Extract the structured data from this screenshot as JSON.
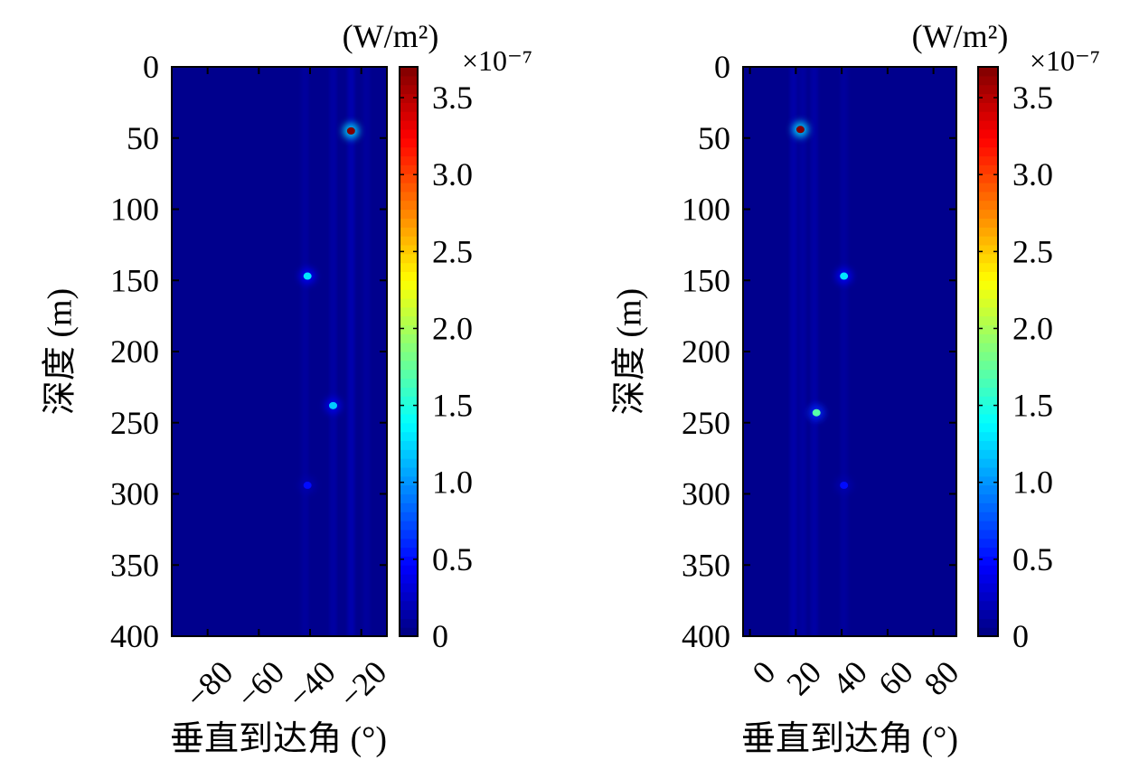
{
  "colormap": "jet",
  "colors": {
    "background": "#00008f",
    "stripe": "#0a2ac8"
  },
  "chart_data": [
    {
      "type": "heatmap",
      "xlabel": "垂直到达角 (°)",
      "ylabel": "深度 (m)",
      "xlim": [
        -94,
        -10
      ],
      "ylim": [
        0,
        400
      ],
      "y_inverted": true,
      "xticks": [
        -80,
        -60,
        -40,
        -20
      ],
      "xtick_labels": [
        "−80",
        "−60",
        "−40",
        "−20"
      ],
      "yticks": [
        0,
        50,
        100,
        150,
        200,
        250,
        300,
        350,
        400
      ],
      "ytick_labels": [
        "0",
        "50",
        "100",
        "150",
        "200",
        "250",
        "300",
        "350",
        "400"
      ],
      "colorbar": {
        "unit": "(W/m²)",
        "multiplier": "×10⁻⁷",
        "range": [
          0,
          3.7
        ],
        "ticks": [
          0,
          0.5,
          1.0,
          1.5,
          2.0,
          2.5,
          3.0,
          3.5
        ],
        "tick_labels": [
          "0",
          "0.5",
          "1.0",
          "1.5",
          "2.0",
          "2.5",
          "3.0",
          "3.5"
        ]
      },
      "background_value": 0.05,
      "stripes": [
        {
          "x": -42,
          "value": 0.12
        },
        {
          "x": -31,
          "value": 0.15
        },
        {
          "x": -24,
          "value": 0.2
        },
        {
          "x": -18,
          "value": 0.12
        }
      ],
      "hotspots": [
        {
          "angle": -24,
          "depth": 45,
          "value": 3.7
        },
        {
          "angle": -41,
          "depth": 147,
          "value": 1.3
        },
        {
          "angle": -31,
          "depth": 238,
          "value": 1.2
        },
        {
          "angle": -41,
          "depth": 294,
          "value": 0.5
        }
      ]
    },
    {
      "type": "heatmap",
      "xlabel": "垂直到达角 (°)",
      "ylabel": "深度 (m)",
      "xlim": [
        -3,
        90
      ],
      "ylim": [
        0,
        400
      ],
      "y_inverted": true,
      "xticks": [
        0,
        20,
        40,
        60,
        80
      ],
      "xtick_labels": [
        "0",
        "20",
        "40",
        "60",
        "80"
      ],
      "yticks": [
        0,
        50,
        100,
        150,
        200,
        250,
        300,
        350,
        400
      ],
      "ytick_labels": [
        "0",
        "50",
        "100",
        "150",
        "200",
        "250",
        "300",
        "350",
        "400"
      ],
      "colorbar": {
        "unit": "(W/m²)",
        "multiplier": "×10⁻⁷",
        "range": [
          0,
          3.7
        ],
        "ticks": [
          0,
          0.5,
          1.0,
          1.5,
          2.0,
          2.5,
          3.0,
          3.5
        ],
        "tick_labels": [
          "0",
          "0.5",
          "1.0",
          "1.5",
          "2.0",
          "2.5",
          "3.0",
          "3.5"
        ]
      },
      "background_value": 0.05,
      "stripes": [
        {
          "x": 19,
          "value": 0.18
        },
        {
          "x": 23,
          "value": 0.14
        },
        {
          "x": 28,
          "value": 0.16
        },
        {
          "x": 41,
          "value": 0.12
        }
      ],
      "hotspots": [
        {
          "angle": 22,
          "depth": 44,
          "value": 3.7
        },
        {
          "angle": 41,
          "depth": 147,
          "value": 1.3
        },
        {
          "angle": 29,
          "depth": 243,
          "value": 1.7
        },
        {
          "angle": 41,
          "depth": 294,
          "value": 0.5
        }
      ]
    }
  ]
}
